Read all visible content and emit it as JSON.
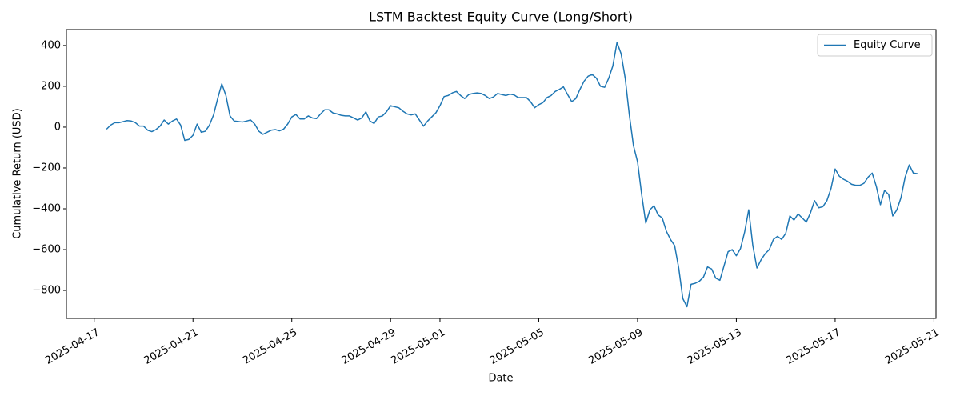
{
  "chart_data": {
    "type": "line",
    "title": "LSTM Backtest Equity Curve (Long/Short)",
    "xlabel": "Date",
    "ylabel": "Cumulative Return (USD)",
    "x": [
      "2025-04-17 12:00",
      "2025-04-17 16:00",
      "2025-04-17 20:00",
      "2025-04-18 00:00",
      "2025-04-18 04:00",
      "2025-04-18 08:00",
      "2025-04-18 12:00",
      "2025-04-18 16:00",
      "2025-04-18 20:00",
      "2025-04-19 00:00",
      "2025-04-19 04:00",
      "2025-04-19 08:00",
      "2025-04-19 12:00",
      "2025-04-19 16:00",
      "2025-04-19 20:00",
      "2025-04-20 00:00",
      "2025-04-20 04:00",
      "2025-04-20 08:00",
      "2025-04-20 12:00",
      "2025-04-20 16:00",
      "2025-04-20 20:00",
      "2025-04-21 00:00",
      "2025-04-21 04:00",
      "2025-04-21 08:00",
      "2025-04-21 12:00",
      "2025-04-21 16:00",
      "2025-04-21 20:00",
      "2025-04-22 00:00",
      "2025-04-22 04:00",
      "2025-04-22 08:00",
      "2025-04-22 12:00",
      "2025-04-22 16:00",
      "2025-04-22 20:00",
      "2025-04-23 00:00",
      "2025-04-23 04:00",
      "2025-04-23 08:00",
      "2025-04-23 12:00",
      "2025-04-23 16:00",
      "2025-04-23 20:00",
      "2025-04-24 00:00",
      "2025-04-24 04:00",
      "2025-04-24 08:00",
      "2025-04-24 12:00",
      "2025-04-24 16:00",
      "2025-04-24 20:00",
      "2025-04-25 00:00",
      "2025-04-25 04:00",
      "2025-04-25 08:00",
      "2025-04-25 12:00",
      "2025-04-25 16:00",
      "2025-04-25 20:00",
      "2025-04-26 00:00",
      "2025-04-26 04:00",
      "2025-04-26 08:00",
      "2025-04-26 12:00",
      "2025-04-26 16:00",
      "2025-04-26 20:00",
      "2025-04-27 00:00",
      "2025-04-27 04:00",
      "2025-04-27 08:00",
      "2025-04-27 12:00",
      "2025-04-27 16:00",
      "2025-04-27 20:00",
      "2025-04-28 00:00",
      "2025-04-28 04:00",
      "2025-04-28 08:00",
      "2025-04-28 12:00",
      "2025-04-28 16:00",
      "2025-04-28 20:00",
      "2025-04-29 00:00",
      "2025-04-29 04:00",
      "2025-04-29 08:00",
      "2025-04-29 12:00",
      "2025-04-29 16:00",
      "2025-04-29 20:00",
      "2025-04-30 00:00",
      "2025-04-30 04:00",
      "2025-04-30 08:00",
      "2025-04-30 12:00",
      "2025-04-30 16:00",
      "2025-04-30 20:00",
      "2025-05-01 00:00",
      "2025-05-01 04:00",
      "2025-05-01 08:00",
      "2025-05-01 12:00",
      "2025-05-01 16:00",
      "2025-05-01 20:00",
      "2025-05-02 00:00",
      "2025-05-02 04:00",
      "2025-05-02 08:00",
      "2025-05-02 12:00",
      "2025-05-02 16:00",
      "2025-05-02 20:00",
      "2025-05-03 00:00",
      "2025-05-03 04:00",
      "2025-05-03 08:00",
      "2025-05-03 12:00",
      "2025-05-03 16:00",
      "2025-05-03 20:00",
      "2025-05-04 00:00",
      "2025-05-04 04:00",
      "2025-05-04 08:00",
      "2025-05-04 12:00",
      "2025-05-04 16:00",
      "2025-05-04 20:00",
      "2025-05-05 00:00",
      "2025-05-05 04:00",
      "2025-05-05 08:00",
      "2025-05-05 12:00",
      "2025-05-05 16:00",
      "2025-05-05 20:00",
      "2025-05-06 00:00",
      "2025-05-06 04:00",
      "2025-05-06 08:00",
      "2025-05-06 12:00",
      "2025-05-06 16:00",
      "2025-05-06 20:00",
      "2025-05-07 00:00",
      "2025-05-07 04:00",
      "2025-05-07 08:00",
      "2025-05-07 12:00",
      "2025-05-07 16:00",
      "2025-05-07 20:00",
      "2025-05-08 00:00",
      "2025-05-08 04:00",
      "2025-05-08 08:00",
      "2025-05-08 12:00",
      "2025-05-08 16:00",
      "2025-05-08 20:00",
      "2025-05-09 00:00",
      "2025-05-09 04:00",
      "2025-05-09 08:00",
      "2025-05-09 12:00",
      "2025-05-09 16:00",
      "2025-05-09 20:00",
      "2025-05-10 00:00",
      "2025-05-10 04:00",
      "2025-05-10 08:00",
      "2025-05-10 12:00",
      "2025-05-10 16:00",
      "2025-05-10 20:00",
      "2025-05-11 00:00",
      "2025-05-11 04:00",
      "2025-05-11 08:00",
      "2025-05-11 12:00",
      "2025-05-11 16:00",
      "2025-05-11 20:00",
      "2025-05-12 00:00",
      "2025-05-12 04:00",
      "2025-05-12 08:00",
      "2025-05-12 12:00",
      "2025-05-12 16:00",
      "2025-05-12 20:00",
      "2025-05-13 00:00",
      "2025-05-13 04:00",
      "2025-05-13 08:00",
      "2025-05-13 12:00",
      "2025-05-13 16:00",
      "2025-05-13 20:00",
      "2025-05-14 00:00",
      "2025-05-14 04:00",
      "2025-05-14 08:00",
      "2025-05-14 12:00",
      "2025-05-14 16:00",
      "2025-05-14 20:00",
      "2025-05-15 00:00",
      "2025-05-15 04:00",
      "2025-05-15 08:00",
      "2025-05-15 12:00",
      "2025-05-15 16:00",
      "2025-05-15 20:00",
      "2025-05-16 00:00",
      "2025-05-16 04:00",
      "2025-05-16 08:00",
      "2025-05-16 12:00",
      "2025-05-16 16:00",
      "2025-05-16 20:00",
      "2025-05-17 00:00",
      "2025-05-17 04:00",
      "2025-05-17 08:00",
      "2025-05-17 12:00",
      "2025-05-17 16:00",
      "2025-05-17 20:00",
      "2025-05-18 00:00",
      "2025-05-18 04:00",
      "2025-05-18 08:00",
      "2025-05-18 12:00",
      "2025-05-18 16:00",
      "2025-05-18 20:00",
      "2025-05-19 00:00",
      "2025-05-19 04:00",
      "2025-05-19 08:00",
      "2025-05-19 12:00",
      "2025-05-19 16:00",
      "2025-05-19 20:00",
      "2025-05-20 00:00",
      "2025-05-20 04:00",
      "2025-05-20 08:00"
    ],
    "series": [
      {
        "name": "Equity Curve",
        "color": "#1f77b4",
        "values": [
          -10,
          10,
          22,
          22,
          27,
          32,
          30,
          22,
          5,
          5,
          -15,
          -22,
          -12,
          5,
          35,
          15,
          30,
          40,
          10,
          -65,
          -60,
          -40,
          15,
          -25,
          -20,
          10,
          60,
          140,
          212,
          155,
          55,
          30,
          28,
          25,
          30,
          35,
          15,
          -20,
          -35,
          -25,
          -15,
          -12,
          -18,
          -10,
          15,
          50,
          62,
          40,
          40,
          55,
          45,
          42,
          65,
          85,
          85,
          70,
          65,
          58,
          55,
          55,
          45,
          35,
          45,
          75,
          30,
          18,
          50,
          55,
          75,
          105,
          100,
          95,
          78,
          65,
          60,
          65,
          35,
          5,
          30,
          50,
          70,
          105,
          150,
          155,
          168,
          175,
          155,
          140,
          160,
          165,
          168,
          165,
          155,
          140,
          148,
          165,
          160,
          155,
          162,
          158,
          145,
          145,
          145,
          125,
          95,
          110,
          120,
          145,
          155,
          175,
          185,
          197,
          160,
          125,
          140,
          185,
          225,
          250,
          258,
          240,
          200,
          195,
          240,
          300,
          415,
          360,
          240,
          60,
          -90,
          -170,
          -330,
          -470,
          -405,
          -385,
          -430,
          -445,
          -510,
          -550,
          -580,
          -690,
          -840,
          -880,
          -770,
          -765,
          -755,
          -735,
          -685,
          -695,
          -740,
          -750,
          -680,
          -610,
          -600,
          -630,
          -595,
          -515,
          -405,
          -580,
          -690,
          -650,
          -620,
          -600,
          -550,
          -535,
          -550,
          -520,
          -435,
          -455,
          -425,
          -445,
          -465,
          -420,
          -360,
          -395,
          -390,
          -360,
          -300,
          -205,
          -240,
          -255,
          -265,
          -280,
          -285,
          -285,
          -275,
          -245,
          -225,
          -290,
          -380,
          -310,
          -330,
          -435,
          -405,
          -345,
          -245,
          -185,
          -225,
          -228
        ]
      }
    ],
    "xlim": [
      "2025-04-15 21:00",
      "2025-05-21 02:00"
    ],
    "xticks": [
      "2025-04-17",
      "2025-04-21",
      "2025-04-25",
      "2025-04-29",
      "2025-05-01",
      "2025-05-05",
      "2025-05-09",
      "2025-05-13",
      "2025-05-17",
      "2025-05-21"
    ],
    "ylim": [
      -937,
      478
    ],
    "yticks": [
      400,
      200,
      0,
      {
        "value": -200,
        "label": "−200"
      },
      {
        "value": -400,
        "label": "−400"
      },
      {
        "value": -600,
        "label": "−600"
      },
      {
        "value": -800,
        "label": "−800"
      }
    ],
    "legend": "upper right"
  }
}
